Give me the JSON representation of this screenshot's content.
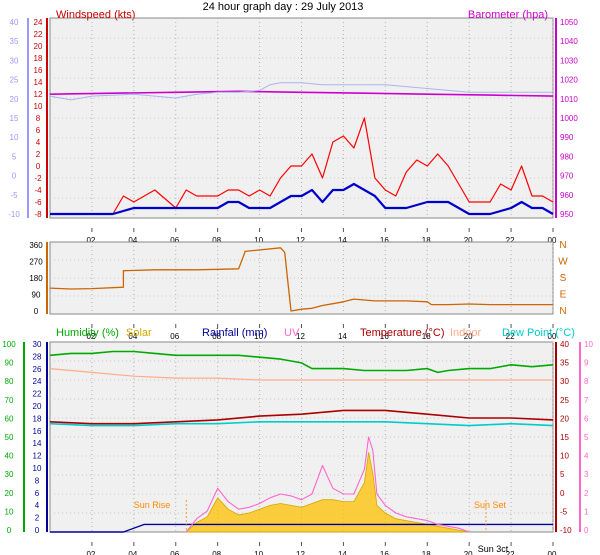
{
  "page": {
    "title": "24 hour graph day : 29 July 2013"
  },
  "colors": {
    "windspeed": "#ff0000",
    "windspeed_avg": "#0000cc",
    "windspeed_axis_text": "#cc0000",
    "windspeed_left_axis": "#9999ff",
    "barometer": "#cc00cc",
    "barometer_secondary": "#aab4ee",
    "wind_direction": "#cc6600",
    "humidity": "#00aa00",
    "solar": "#d4a800",
    "solar_fill": "#ffc000",
    "rainfall": "#000099",
    "uv": "#ff66cc",
    "temperature": "#aa0000",
    "indoor": "#ffaa88",
    "dew_point": "#00cccc",
    "sun_label": "#ff8800"
  },
  "x_ticks": [
    "02",
    "04",
    "06",
    "08",
    "10",
    "12",
    "14",
    "16",
    "18",
    "20",
    "22",
    "00"
  ],
  "chart_data": [
    {
      "type": "line",
      "id": "wind-baro",
      "title": "24 hour graph day : 29 July 2013",
      "left_label": "Windspeed (kts)",
      "right_label": "Barometer (hpa)",
      "left_axis_outer_ticks": [
        "40",
        "35",
        "30",
        "25",
        "20",
        "15",
        "10",
        "5",
        "0",
        "-5",
        "-10"
      ],
      "left_ticks": [
        "24",
        "22",
        "20",
        "18",
        "16",
        "14",
        "12",
        "10",
        "8",
        "6",
        "4",
        "2",
        "0",
        "-2",
        "-4",
        "-6",
        "-8"
      ],
      "right_ticks": [
        "1050",
        "1040",
        "1030",
        "1020",
        "1010",
        "1000",
        "990",
        "980",
        "970",
        "960",
        "950"
      ],
      "x_ticks": [
        "02",
        "04",
        "06",
        "08",
        "10",
        "12",
        "14",
        "16",
        "18",
        "20",
        "22",
        "00"
      ],
      "ylim_left": [
        -8,
        24
      ],
      "ylim_right": [
        945,
        1050
      ],
      "grid": true,
      "series": [
        {
          "name": "Windspeed (kts)",
          "axis": "left",
          "style": "gust",
          "x": [
            0,
            1,
            2,
            3,
            3.5,
            4,
            5,
            6,
            6.5,
            7,
            8,
            8.5,
            9,
            9.5,
            10,
            10.5,
            11,
            11.5,
            12,
            12.5,
            13,
            13.5,
            14,
            14.5,
            15,
            15.5,
            16,
            16.5,
            17,
            17.5,
            18,
            18.5,
            19,
            20,
            21,
            21.5,
            22,
            22.5,
            23,
            23.5,
            24
          ],
          "y": [
            -8,
            -8,
            -8,
            -8,
            -5,
            -6,
            -4,
            -7,
            -4,
            -5,
            -5,
            -4,
            -4,
            -5,
            -4,
            -5,
            -2,
            0,
            0,
            2,
            -2,
            4,
            5,
            3,
            8,
            -2,
            -4,
            -5,
            -1,
            1,
            0,
            2,
            0,
            -6,
            -6,
            -3,
            -4,
            0,
            -5,
            -5,
            -6
          ]
        },
        {
          "name": "Windspeed average",
          "axis": "left",
          "style": "average",
          "x": [
            0,
            2,
            3,
            4,
            5,
            6,
            7,
            8,
            8.5,
            9,
            9.5,
            10,
            10.5,
            11,
            11.5,
            12,
            12.5,
            13,
            13.5,
            14,
            14.5,
            15,
            15.5,
            16,
            16.5,
            17,
            18,
            18.5,
            19,
            20,
            21,
            22,
            22.5,
            23,
            23.5,
            24
          ],
          "y": [
            -8,
            -8,
            -8,
            -7,
            -7,
            -7,
            -7,
            -7,
            -6,
            -6,
            -7,
            -7,
            -7,
            -6,
            -5,
            -5,
            -4,
            -6,
            -4,
            -4,
            -3,
            -4,
            -5,
            -7,
            -7,
            -7,
            -6,
            -6,
            -6,
            -8,
            -8,
            -7,
            -6,
            -7,
            -7,
            -8
          ]
        },
        {
          "name": "Barometer (hpa)",
          "axis": "right",
          "style": "line",
          "x": [
            0,
            3,
            6,
            9,
            12,
            15,
            18,
            21,
            24
          ],
          "y": [
            1010,
            1010.5,
            1011,
            1011.5,
            1011,
            1010.5,
            1010,
            1009.5,
            1009
          ]
        },
        {
          "name": "Barometer secondary",
          "axis": "right",
          "style": "thin",
          "x": [
            0,
            1,
            2,
            4,
            5,
            6,
            6.5,
            7,
            8,
            9,
            10,
            10.5,
            11,
            12,
            13,
            14,
            15,
            16,
            17,
            18,
            19,
            20,
            21,
            22,
            23,
            24
          ],
          "y": [
            1009,
            1007,
            1009,
            1010,
            1009,
            1008,
            1009,
            1010,
            1011,
            1011,
            1012,
            1015,
            1016,
            1016,
            1015,
            1015,
            1015,
            1015,
            1014,
            1013,
            1012,
            1011,
            1011,
            1011,
            1011,
            1011
          ]
        }
      ]
    },
    {
      "type": "line",
      "id": "wind-direction",
      "left_ticks": [
        "360",
        "270",
        "180",
        "90",
        "0"
      ],
      "right_ticks": [
        "N",
        "W",
        "S",
        "E",
        "N"
      ],
      "x_ticks": [
        "02",
        "04",
        "06",
        "08",
        "10",
        "12",
        "14",
        "16",
        "18",
        "20",
        "22",
        "00"
      ],
      "ylim": [
        0,
        360
      ],
      "grid": true,
      "series": [
        {
          "name": "Wind direction",
          "axis": "left",
          "x": [
            0,
            1,
            2,
            3.5,
            3.5,
            5,
            7,
            9,
            9.3,
            9.3,
            11,
            11.2,
            11.5,
            12,
            12.5,
            13,
            13.5,
            14,
            14.5,
            15,
            15.5,
            16,
            17,
            18,
            18.2,
            19,
            20,
            21,
            22,
            23,
            24
          ],
          "y": [
            125,
            120,
            122,
            130,
            220,
            225,
            225,
            230,
            320,
            325,
            345,
            320,
            0,
            10,
            15,
            30,
            40,
            50,
            65,
            60,
            55,
            55,
            55,
            50,
            35,
            35,
            38,
            35,
            35,
            35,
            35
          ]
        }
      ]
    },
    {
      "type": "line",
      "id": "temp-humidity",
      "legend": [
        "Humidity (%)",
        "Solar",
        "Rainfall (mm)",
        "UV",
        "Temperature (°C)",
        "Indoor",
        "Dew Point (°C)"
      ],
      "humidity_ticks": [
        "100",
        "90",
        "80",
        "70",
        "60",
        "50",
        "40",
        "30",
        "20",
        "10",
        "0"
      ],
      "rainfall_ticks": [
        "30",
        "28",
        "26",
        "24",
        "22",
        "20",
        "18",
        "16",
        "14",
        "12",
        "10",
        "8",
        "6",
        "4",
        "2",
        "0"
      ],
      "temperature_ticks": [
        "40",
        "35",
        "30",
        "25",
        "20",
        "15",
        "10",
        "5",
        "0",
        "-5",
        "-10"
      ],
      "uv_ticks": [
        "10",
        "9",
        "8",
        "7",
        "6",
        "5",
        "4",
        "3",
        "2",
        "1",
        "0"
      ],
      "x_ticks": [
        "02",
        "04",
        "06",
        "08",
        "10",
        "12",
        "14",
        "16",
        "18",
        "20",
        "22",
        "00"
      ],
      "annotations": [
        "Sun Rise",
        "Sun Set",
        "Sun 3ct"
      ],
      "ylim_humidity": [
        0,
        100
      ],
      "ylim_temperature": [
        -10,
        40
      ],
      "ylim_uv": [
        0,
        10
      ],
      "grid": true,
      "series": [
        {
          "name": "Humidity (%)",
          "axis": "humidity",
          "x": [
            0,
            1,
            2,
            3,
            4,
            5,
            6,
            7,
            8,
            9,
            10,
            11,
            12,
            12.5,
            13,
            14,
            15,
            16,
            17,
            18,
            18.5,
            19,
            20,
            21,
            22,
            23,
            24
          ],
          "y": [
            93,
            94,
            94,
            95,
            95,
            94,
            93,
            93,
            93,
            93,
            92,
            91,
            89,
            86,
            86,
            86,
            85,
            85,
            85,
            86,
            84,
            85,
            86,
            86,
            88,
            87,
            88
          ]
        },
        {
          "name": "Indoor",
          "axis": "temperature",
          "x": [
            0,
            2,
            4,
            6,
            8,
            10,
            12,
            14,
            16,
            18,
            20,
            22,
            24
          ],
          "y": [
            33,
            32,
            31,
            30.5,
            30.5,
            30,
            30,
            30,
            30,
            30,
            30,
            30,
            30
          ]
        },
        {
          "name": "Temperature (°C)",
          "axis": "temperature",
          "x": [
            0,
            2,
            4,
            6,
            8,
            10,
            12,
            14,
            15,
            16,
            18,
            20,
            22,
            24
          ],
          "y": [
            19,
            18.5,
            18.5,
            19,
            19.5,
            20.5,
            21,
            22,
            22,
            22,
            21,
            20,
            20,
            19.5
          ]
        },
        {
          "name": "Dew Point (°C)",
          "axis": "temperature",
          "x": [
            0,
            2,
            4,
            6,
            8,
            10,
            12,
            14,
            16,
            18,
            20,
            22,
            24
          ],
          "y": [
            18.5,
            18,
            18,
            18.5,
            18.5,
            19,
            19,
            19,
            19,
            18.5,
            18,
            18.5,
            18
          ]
        },
        {
          "name": "Rainfall (mm)",
          "axis": "humidity",
          "x": [
            0,
            3.5,
            4.5,
            5,
            24
          ],
          "y": [
            0,
            0,
            4,
            4,
            4
          ]
        },
        {
          "name": "Solar",
          "axis": "uv",
          "style": "area",
          "x": [
            6.5,
            7,
            7.5,
            8,
            8.5,
            9,
            9.5,
            10,
            10.5,
            11,
            11.5,
            12,
            12.5,
            13,
            13.5,
            14,
            14.5,
            15,
            15.2,
            15.4,
            15.6,
            16,
            16.5,
            17,
            17.5,
            18,
            18.5,
            19,
            19.5,
            20
          ],
          "y": [
            0,
            0.5,
            0.8,
            1.8,
            1.2,
            0.9,
            1.0,
            1.2,
            1.4,
            1.5,
            1.4,
            1.3,
            1.5,
            1.7,
            1.7,
            1.6,
            1.6,
            2.6,
            4.2,
            3.1,
            1.4,
            1.0,
            0.7,
            0.6,
            0.5,
            0.4,
            0.3,
            0.2,
            0.1,
            0
          ]
        },
        {
          "name": "UV",
          "axis": "uv",
          "x": [
            6.5,
            7,
            7.5,
            8,
            8.5,
            9,
            9.5,
            10,
            10.5,
            11,
            11.5,
            12,
            12.5,
            13,
            13.5,
            14,
            14.5,
            15,
            15.2,
            15.4,
            15.6,
            16,
            16.5,
            17,
            17.5,
            18,
            18.5,
            19,
            19.5,
            20
          ],
          "y": [
            0,
            0.7,
            1.1,
            2.3,
            1.6,
            1.2,
            1.3,
            1.5,
            1.8,
            2.0,
            1.9,
            1.7,
            2.0,
            3.5,
            2.3,
            2.0,
            2.0,
            3.3,
            5.0,
            4.3,
            2.0,
            1.4,
            1.0,
            0.8,
            0.7,
            0.6,
            0.4,
            0.3,
            0.2,
            0
          ]
        }
      ]
    }
  ]
}
